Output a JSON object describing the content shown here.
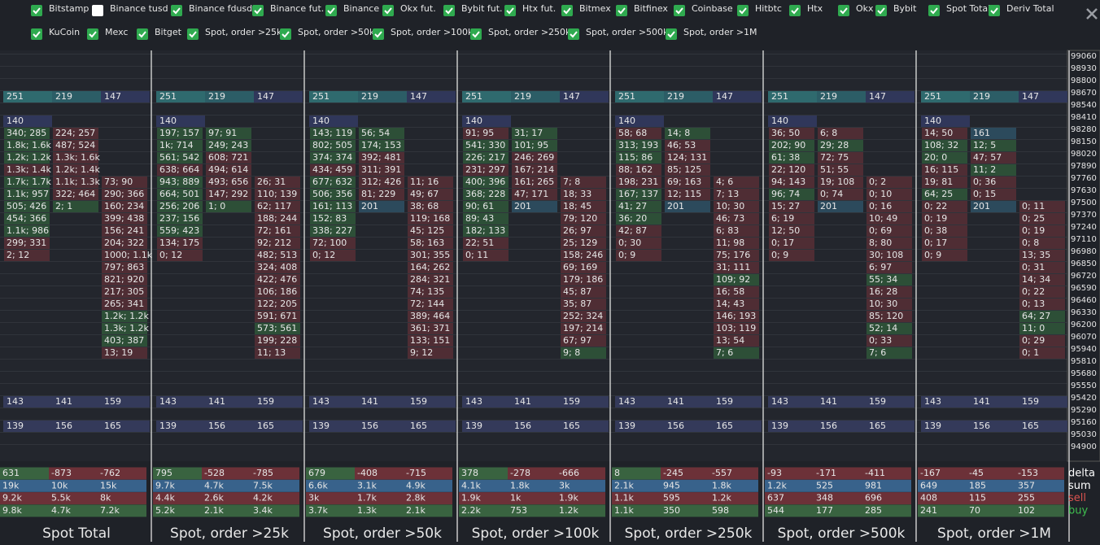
{
  "filters": [
    {
      "label": "Bitstamp",
      "checked": true
    },
    {
      "label": "Binance tusd",
      "checked": false
    },
    {
      "label": "Binance fdusd",
      "checked": true
    },
    {
      "label": "Binance fut.",
      "checked": true
    },
    {
      "label": "Binance",
      "checked": true
    },
    {
      "label": "Okx fut.",
      "checked": true
    },
    {
      "label": "Bybit fut.",
      "checked": true
    },
    {
      "label": "Htx fut.",
      "checked": true
    },
    {
      "label": "Bitmex",
      "checked": true
    },
    {
      "label": "Bitfinex",
      "checked": true
    },
    {
      "label": "Coinbase",
      "checked": true
    },
    {
      "label": "Hitbtc",
      "checked": true
    },
    {
      "label": "Htx",
      "checked": true
    },
    {
      "label": "Okx",
      "checked": true
    },
    {
      "label": "Bybit",
      "checked": true
    },
    {
      "label": "Spot Total",
      "checked": true
    },
    {
      "label": "Deriv Total",
      "checked": true
    }
  ],
  "filters2": [
    {
      "label": "KuCoin",
      "checked": true
    },
    {
      "label": "Mexc",
      "checked": true
    },
    {
      "label": "Bitget",
      "checked": true
    },
    {
      "label": "Spot, order >25k",
      "checked": true
    },
    {
      "label": "Spot, order >50k",
      "checked": true
    },
    {
      "label": "Spot, order >100k",
      "checked": true
    },
    {
      "label": "Spot, order >250k",
      "checked": true
    },
    {
      "label": "Spot, order >500k",
      "checked": true
    },
    {
      "label": "Spot, order >1M",
      "checked": true
    }
  ],
  "price_axis": [
    99060,
    98930,
    98800,
    98670,
    98540,
    98410,
    98280,
    98150,
    98020,
    97890,
    97760,
    97630,
    97500,
    97370,
    97240,
    97110,
    96980,
    96850,
    96720,
    96590,
    96460,
    96330,
    96200,
    96070,
    95940,
    95810,
    95680,
    95550,
    95420,
    95290,
    95160,
    95030,
    94900
  ],
  "stat_labels": [
    "delta",
    "sum",
    "sell",
    "buy"
  ],
  "panels": [
    {
      "title": "Spot Total",
      "bands": [
        {
          "price": 98670,
          "values": [
            251,
            219,
            147
          ]
        },
        {
          "price": 95420,
          "values": [
            143,
            141,
            159
          ]
        },
        {
          "price": 95160,
          "values": [
            139,
            156,
            165
          ]
        }
      ],
      "mark": {
        "price": 98410,
        "value": 140
      },
      "cols": [
        {
          "top": 98280,
          "cells": [
            "340; 285",
            "1.8k; 1.6k",
            "1.2k; 1.2k",
            "1.3k; 1.4k",
            "1.7k; 1.7k",
            "1.1k; 957",
            "505; 426",
            "454; 366",
            "1.1k; 986",
            "299; 331",
            "2; 12"
          ]
        },
        {
          "top": 98280,
          "cells": [
            "224; 257",
            "487; 524",
            "1.3k; 1.6k",
            "1.2k; 1.4k",
            "1.1k; 1.3k",
            "322; 464",
            "2; 1"
          ]
        },
        {
          "top": 97760,
          "cells": [
            "73; 90",
            "290; 366",
            "160; 234",
            "399; 438",
            "156; 241",
            "204; 322",
            "1000; 1.1k",
            "797; 863",
            "821; 920",
            "217; 305",
            "265; 341",
            "1.2k; 1.2k",
            "1.3k; 1.2k",
            "403; 387",
            "13; 19"
          ]
        }
      ],
      "stats": {
        "delta": [
          "631",
          "-873",
          "-762"
        ],
        "sum": [
          "19k",
          "10k",
          "15k"
        ],
        "sell": [
          "9.2k",
          "5.5k",
          "8k"
        ],
        "buy": [
          "9.8k",
          "4.7k",
          "7.2k"
        ]
      }
    },
    {
      "title": "Spot, order >25k",
      "bands": [
        {
          "price": 98670,
          "values": [
            251,
            219,
            147
          ]
        },
        {
          "price": 95420,
          "values": [
            143,
            141,
            159
          ]
        },
        {
          "price": 95160,
          "values": [
            139,
            156,
            165
          ]
        }
      ],
      "mark": {
        "price": 98410,
        "value": 140
      },
      "cols": [
        {
          "top": 98280,
          "cells": [
            "197; 157",
            "1k; 714",
            "561; 542",
            "638; 664",
            "943; 889",
            "664; 501",
            "256; 206",
            "237; 156",
            "559; 423",
            "134; 175",
            "0; 12"
          ]
        },
        {
          "top": 98280,
          "cells": [
            "97; 91",
            "249; 243",
            "608; 721",
            "494; 614",
            "493; 656",
            "147; 292",
            "1; 0"
          ]
        },
        {
          "top": 97760,
          "cells": [
            "26; 31",
            "110; 139",
            "62; 117",
            "188; 244",
            "72; 161",
            "92; 212",
            "482; 513",
            "324; 408",
            "422; 476",
            "106; 186",
            "122; 205",
            "591; 671",
            "573; 561",
            "199; 228",
            "11; 13"
          ]
        }
      ],
      "stats": {
        "delta": [
          "795",
          "-528",
          "-785"
        ],
        "sum": [
          "9.7k",
          "4.7k",
          "7.5k"
        ],
        "sell": [
          "4.4k",
          "2.6k",
          "4.2k"
        ],
        "buy": [
          "5.2k",
          "2.1k",
          "3.4k"
        ]
      }
    },
    {
      "title": "Spot, order >50k",
      "bands": [
        {
          "price": 98670,
          "values": [
            251,
            219,
            147
          ]
        },
        {
          "price": 95420,
          "values": [
            143,
            141,
            159
          ]
        },
        {
          "price": 95160,
          "values": [
            139,
            156,
            165
          ]
        }
      ],
      "mark": {
        "price": 98410,
        "value": 140
      },
      "cols": [
        {
          "top": 98280,
          "cells": [
            "143; 119",
            "802; 505",
            "374; 374",
            "434; 459",
            "677; 632",
            "506; 356",
            "161; 113",
            "152; 83",
            "338; 227",
            "72; 100",
            "0; 12"
          ]
        },
        {
          "top": 98280,
          "cells": [
            "56; 54",
            "174; 153",
            "392; 481",
            "311; 391",
            "312; 426",
            "81; 229",
            "201"
          ]
        },
        {
          "top": 97760,
          "cells": [
            "11; 16",
            "49; 67",
            "38; 68",
            "119; 168",
            "45; 125",
            "58; 163",
            "301; 355",
            "164; 262",
            "284; 321",
            "74; 135",
            "72; 144",
            "389; 464",
            "361; 371",
            "133; 151",
            "9; 12"
          ]
        }
      ],
      "stats": {
        "delta": [
          "679",
          "-408",
          "-715"
        ],
        "sum": [
          "6.6k",
          "3.1k",
          "4.9k"
        ],
        "sell": [
          "3k",
          "1.7k",
          "2.8k"
        ],
        "buy": [
          "3.7k",
          "1.3k",
          "2.1k"
        ]
      }
    },
    {
      "title": "Spot, order >100k",
      "bands": [
        {
          "price": 98670,
          "values": [
            251,
            219,
            147
          ]
        },
        {
          "price": 95420,
          "values": [
            143,
            141,
            159
          ]
        },
        {
          "price": 95160,
          "values": [
            139,
            156,
            165
          ]
        }
      ],
      "mark": {
        "price": 98410,
        "value": 140
      },
      "cols": [
        {
          "top": 98280,
          "cells": [
            "91; 95",
            "541; 330",
            "226; 217",
            "231; 297",
            "400; 396",
            "368; 228",
            "90; 61",
            "89; 43",
            "182; 133",
            "22; 51",
            "0; 11"
          ]
        },
        {
          "top": 98280,
          "cells": [
            "31; 17",
            "101; 95",
            "246; 269",
            "167; 214",
            "161; 265",
            "47; 171",
            "201"
          ]
        },
        {
          "top": 97760,
          "cells": [
            "7; 8",
            "18; 33",
            "18; 45",
            "79; 120",
            "26; 97",
            "25; 129",
            "158; 246",
            "69; 169",
            "179; 186",
            "45; 87",
            "35; 87",
            "252; 324",
            "197; 214",
            "67; 97",
            "9; 8"
          ]
        }
      ],
      "stats": {
        "delta": [
          "378",
          "-278",
          "-666"
        ],
        "sum": [
          "4.1k",
          "1.8k",
          "3k"
        ],
        "sell": [
          "1.9k",
          "1k",
          "1.9k"
        ],
        "buy": [
          "2.2k",
          "753",
          "1.2k"
        ]
      }
    },
    {
      "title": "Spot, order >250k",
      "bands": [
        {
          "price": 98670,
          "values": [
            251,
            219,
            147
          ]
        },
        {
          "price": 95420,
          "values": [
            143,
            141,
            159
          ]
        },
        {
          "price": 95160,
          "values": [
            139,
            156,
            165
          ]
        }
      ],
      "mark": {
        "price": 98410,
        "value": 140
      },
      "cols": [
        {
          "top": 98280,
          "cells": [
            "58; 68",
            "313; 193",
            "115; 86",
            "88; 162",
            "198; 231",
            "167; 137",
            "41; 27",
            "36; 20",
            "42; 87",
            "0; 30",
            "0; 9"
          ]
        },
        {
          "top": 98280,
          "cells": [
            "14; 8",
            "46; 53",
            "124; 131",
            "85; 125",
            "69; 163",
            "12; 115",
            "201"
          ]
        },
        {
          "top": 97760,
          "cells": [
            "4; 6",
            "7; 13",
            "10; 30",
            "46; 73",
            "6; 83",
            "11; 98",
            "75; 176",
            "31; 111",
            "109; 92",
            "16; 58",
            "14; 43",
            "146; 193",
            "103; 119",
            "13; 54",
            "7; 6"
          ]
        }
      ],
      "stats": {
        "delta": [
          "8",
          "-245",
          "-557"
        ],
        "sum": [
          "2.1k",
          "945",
          "1.8k"
        ],
        "sell": [
          "1.1k",
          "595",
          "1.2k"
        ],
        "buy": [
          "1.1k",
          "350",
          "598"
        ]
      }
    },
    {
      "title": "Spot, order >500k",
      "bands": [
        {
          "price": 98670,
          "values": [
            251,
            219,
            147
          ]
        },
        {
          "price": 95420,
          "values": [
            143,
            141,
            159
          ]
        },
        {
          "price": 95160,
          "values": [
            139,
            156,
            165
          ]
        }
      ],
      "mark": {
        "price": 98410,
        "value": 140
      },
      "cols": [
        {
          "top": 98280,
          "cells": [
            "36; 50",
            "202; 90",
            "61; 38",
            "22; 120",
            "94; 143",
            "96; 74",
            "15; 27",
            "6; 19",
            "12; 50",
            "0; 17",
            "0; 9"
          ]
        },
        {
          "top": 98280,
          "cells": [
            "6; 8",
            "29; 28",
            "72; 75",
            "51; 55",
            "19; 108",
            "0; 74",
            "201"
          ]
        },
        {
          "top": 97760,
          "cells": [
            "0; 2",
            "0; 10",
            "0; 16",
            "10; 49",
            "0; 69",
            "8; 80",
            "30; 108",
            "6; 97",
            "55; 34",
            "16; 28",
            "10; 30",
            "85; 120",
            "52; 14",
            "0; 33",
            "7; 6"
          ]
        }
      ],
      "stats": {
        "delta": [
          "-93",
          "-171",
          "-411"
        ],
        "sum": [
          "1.2k",
          "525",
          "981"
        ],
        "sell": [
          "637",
          "348",
          "696"
        ],
        "buy": [
          "544",
          "177",
          "285"
        ]
      }
    },
    {
      "title": "Spot, order >1M",
      "bands": [
        {
          "price": 98670,
          "values": [
            251,
            219,
            147
          ]
        },
        {
          "price": 95420,
          "values": [
            143,
            141,
            159
          ]
        },
        {
          "price": 95160,
          "values": [
            139,
            156,
            165
          ]
        }
      ],
      "mark": {
        "price": 98410,
        "value": 140
      },
      "cols": [
        {
          "top": 98280,
          "cells": [
            "14; 50",
            "108; 32",
            "20; 0",
            "16; 115",
            "19; 81",
            "64; 25",
            "0; 22",
            "0; 19",
            "0; 38",
            "0; 17",
            "0; 9"
          ]
        },
        {
          "top": 98280,
          "cells": [
            "161",
            "12; 5",
            "47; 57",
            "11; 2",
            "0; 36",
            "0; 15",
            "201"
          ]
        },
        {
          "top": 97500,
          "cells": [
            "0; 11",
            "0; 25",
            "0; 19",
            "0; 8",
            "13; 35",
            "0; 31",
            "14; 34",
            "0; 22",
            "0; 13",
            "64; 27",
            "11; 0",
            "0; 29",
            "0; 1"
          ]
        }
      ],
      "stats": {
        "delta": [
          "-167",
          "-45",
          "-153"
        ],
        "sum": [
          "649",
          "185",
          "357"
        ],
        "sell": [
          "408",
          "115",
          "255"
        ],
        "buy": [
          "241",
          "70",
          "102"
        ]
      }
    }
  ]
}
